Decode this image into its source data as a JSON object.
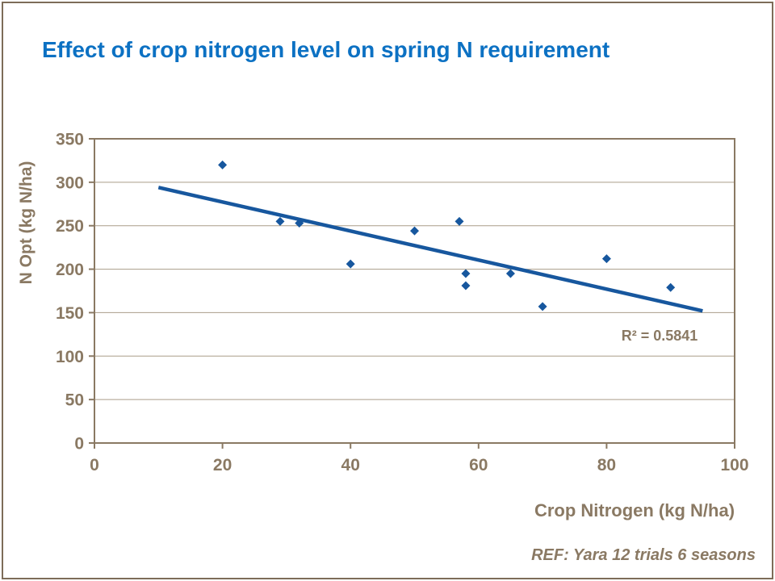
{
  "title": "Effect of crop nitrogen level on spring N requirement",
  "footer": "REF: Yara 12 trials 6 seasons",
  "colors": {
    "title_blue": "#0C71C3",
    "series_blue": "#17579E",
    "axis_taupe": "#8A7963",
    "gridline": "#AA9D89",
    "frame_border": "#7D6D59"
  },
  "chart_data": {
    "type": "scatter",
    "title": "Effect of crop nitrogen level on spring N requirement",
    "xlabel": "Crop Nitrogen (kg N/ha)",
    "ylabel": "N Opt (kg N/ha)",
    "xlim": [
      0,
      100
    ],
    "ylim": [
      0,
      350
    ],
    "xticks": [
      0,
      20,
      40,
      60,
      80,
      100
    ],
    "yticks": [
      0,
      50,
      100,
      150,
      200,
      250,
      300,
      350
    ],
    "grid": "horizontal",
    "legend": "none",
    "points": [
      [
        20,
        320
      ],
      [
        29,
        255
      ],
      [
        32,
        253
      ],
      [
        40,
        206
      ],
      [
        50,
        244
      ],
      [
        57,
        255
      ],
      [
        58,
        195
      ],
      [
        58,
        181
      ],
      [
        65,
        195
      ],
      [
        70,
        157
      ],
      [
        80,
        212
      ],
      [
        90,
        179
      ]
    ],
    "trendline": {
      "x1": 10,
      "y1": 294,
      "x2": 95,
      "y2": 152
    },
    "r2_label": "R² = 0.5841"
  }
}
